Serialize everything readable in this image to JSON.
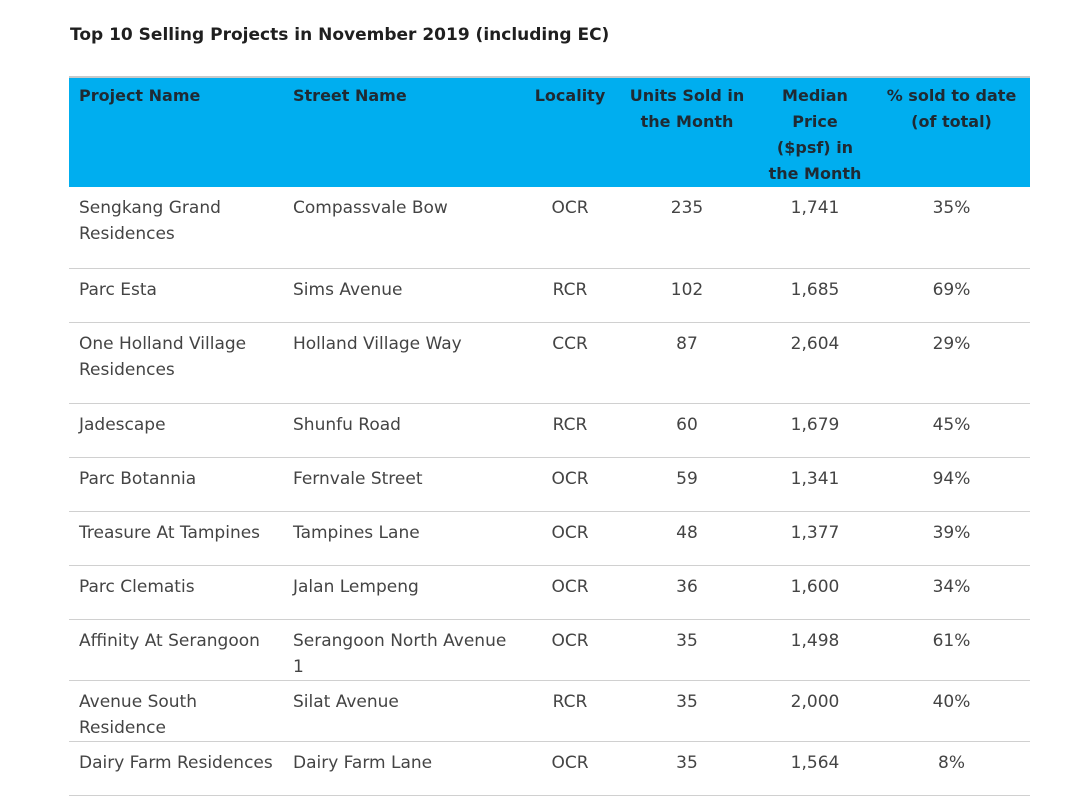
{
  "title": "Top 10 Selling Projects in November 2019 (including EC)",
  "table": {
    "headers": {
      "project": "Project Name",
      "street": "Street Name",
      "locality": "Locality",
      "units": "Units Sold in the Month",
      "price": "Median Price ($psf) in the Month",
      "sold": "% sold to date (of total)"
    },
    "rows": [
      {
        "project": "Sengkang Grand Residences",
        "street": "Compassvale Bow",
        "locality": "OCR",
        "units": "235",
        "price": "1,741",
        "sold": "35%"
      },
      {
        "project": "Parc Esta",
        "street": "Sims Avenue",
        "locality": "RCR",
        "units": "102",
        "price": "1,685",
        "sold": "69%"
      },
      {
        "project": "One Holland Village Residences",
        "street": "Holland Village Way",
        "locality": "CCR",
        "units": "87",
        "price": "2,604",
        "sold": "29%"
      },
      {
        "project": "Jadescape",
        "street": "Shunfu Road",
        "locality": "RCR",
        "units": "60",
        "price": "1,679",
        "sold": "45%"
      },
      {
        "project": "Parc Botannia",
        "street": "Fernvale Street",
        "locality": "OCR",
        "units": "59",
        "price": "1,341",
        "sold": "94%"
      },
      {
        "project": "Treasure At Tampines",
        "street": "Tampines Lane",
        "locality": "OCR",
        "units": "48",
        "price": "1,377",
        "sold": "39%"
      },
      {
        "project": "Parc Clematis",
        "street": "Jalan Lempeng",
        "locality": "OCR",
        "units": "36",
        "price": "1,600",
        "sold": "34%"
      },
      {
        "project": "Affinity At Serangoon",
        "street": "Serangoon North Avenue 1",
        "locality": "OCR",
        "units": "35",
        "price": "1,498",
        "sold": "61%"
      },
      {
        "project": "Avenue South Residence",
        "street": "Silat Avenue",
        "locality": "RCR",
        "units": "35",
        "price": "2,000",
        "sold": "40%"
      },
      {
        "project": "Dairy Farm Residences",
        "street": "Dairy Farm Lane",
        "locality": "OCR",
        "units": "35",
        "price": "1,564",
        "sold": "8%"
      }
    ]
  }
}
